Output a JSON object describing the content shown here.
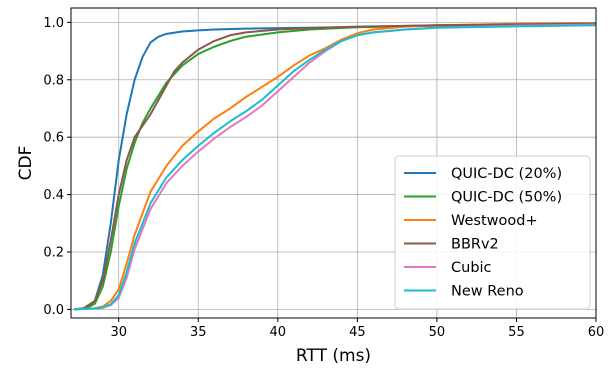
{
  "chart_data": {
    "type": "line",
    "title": "",
    "xlabel": "RTT (ms)",
    "ylabel": "CDF",
    "xlim": [
      27,
      60
    ],
    "ylim": [
      -0.03,
      1.05
    ],
    "xticks": [
      30,
      35,
      40,
      45,
      50,
      55,
      60
    ],
    "yticks": [
      0.0,
      0.2,
      0.4,
      0.6,
      0.8,
      1.0
    ],
    "grid": true,
    "legend_position": "lower-right",
    "series": [
      {
        "name": "QUIC-DC (20%)",
        "color": "#1f77b4",
        "x": [
          27.2,
          28,
          28.5,
          29,
          29.5,
          30,
          30.5,
          31,
          31.5,
          32,
          32.5,
          33,
          34,
          35,
          36,
          38,
          40,
          45,
          50,
          55,
          60
        ],
        "y": [
          0.0,
          0.005,
          0.03,
          0.12,
          0.3,
          0.52,
          0.68,
          0.8,
          0.88,
          0.93,
          0.95,
          0.96,
          0.968,
          0.972,
          0.975,
          0.978,
          0.98,
          0.984,
          0.988,
          0.99,
          0.993
        ]
      },
      {
        "name": "QUIC-DC (50%)",
        "color": "#2ca02c",
        "x": [
          27.2,
          28,
          28.5,
          29,
          29.5,
          30,
          30.5,
          31,
          31.5,
          32,
          32.5,
          33,
          34,
          35,
          36,
          37,
          38,
          40,
          42,
          45,
          50,
          55,
          60
        ],
        "y": [
          0.0,
          0.005,
          0.02,
          0.08,
          0.2,
          0.36,
          0.49,
          0.58,
          0.65,
          0.7,
          0.745,
          0.79,
          0.85,
          0.89,
          0.915,
          0.935,
          0.95,
          0.965,
          0.975,
          0.983,
          0.99,
          0.993,
          0.996
        ]
      },
      {
        "name": "Westwood+",
        "color": "#ff7f0e",
        "x": [
          27.2,
          28.5,
          29,
          29.5,
          30,
          30.5,
          31,
          32,
          33,
          34,
          35,
          36,
          37,
          38,
          39,
          40,
          41,
          42,
          43,
          44,
          45,
          46,
          48,
          50,
          55,
          60
        ],
        "y": [
          0.0,
          0.004,
          0.01,
          0.03,
          0.07,
          0.16,
          0.26,
          0.41,
          0.5,
          0.57,
          0.62,
          0.665,
          0.7,
          0.74,
          0.775,
          0.81,
          0.85,
          0.885,
          0.91,
          0.94,
          0.962,
          0.975,
          0.985,
          0.99,
          0.995,
          0.997
        ]
      },
      {
        "name": "BBRv2",
        "color": "#8c564b",
        "x": [
          27.2,
          27.8,
          28.5,
          29,
          29.5,
          30,
          30.5,
          31,
          31.5,
          32,
          32.5,
          33,
          33.5,
          34,
          35,
          36,
          37,
          38,
          40,
          42,
          45,
          50,
          55,
          60
        ],
        "y": [
          0.0,
          0.004,
          0.03,
          0.1,
          0.24,
          0.4,
          0.52,
          0.6,
          0.64,
          0.68,
          0.73,
          0.78,
          0.83,
          0.86,
          0.905,
          0.935,
          0.955,
          0.965,
          0.975,
          0.98,
          0.985,
          0.99,
          0.993,
          0.996
        ]
      },
      {
        "name": "Cubic",
        "color": "#e377c2",
        "x": [
          27.2,
          28.5,
          29,
          29.5,
          30,
          30.5,
          31,
          32,
          33,
          34,
          35,
          36,
          37,
          38,
          39,
          40,
          41,
          42,
          43,
          44,
          45,
          46,
          48,
          50,
          55,
          60
        ],
        "y": [
          0.0,
          0.003,
          0.006,
          0.015,
          0.04,
          0.11,
          0.21,
          0.35,
          0.44,
          0.5,
          0.55,
          0.595,
          0.635,
          0.67,
          0.71,
          0.76,
          0.81,
          0.86,
          0.9,
          0.935,
          0.955,
          0.965,
          0.975,
          0.982,
          0.988,
          0.992
        ]
      },
      {
        "name": "New Reno",
        "color": "#17becf",
        "x": [
          27.2,
          28.5,
          29,
          29.5,
          30,
          30.5,
          31,
          32,
          33,
          34,
          35,
          36,
          37,
          38,
          39,
          40,
          41,
          42,
          43,
          44,
          45,
          46,
          48,
          50,
          55,
          60
        ],
        "y": [
          0.0,
          0.003,
          0.006,
          0.018,
          0.05,
          0.13,
          0.23,
          0.37,
          0.46,
          0.52,
          0.57,
          0.615,
          0.655,
          0.69,
          0.73,
          0.78,
          0.83,
          0.87,
          0.905,
          0.935,
          0.955,
          0.965,
          0.975,
          0.981,
          0.986,
          0.99
        ]
      }
    ]
  }
}
